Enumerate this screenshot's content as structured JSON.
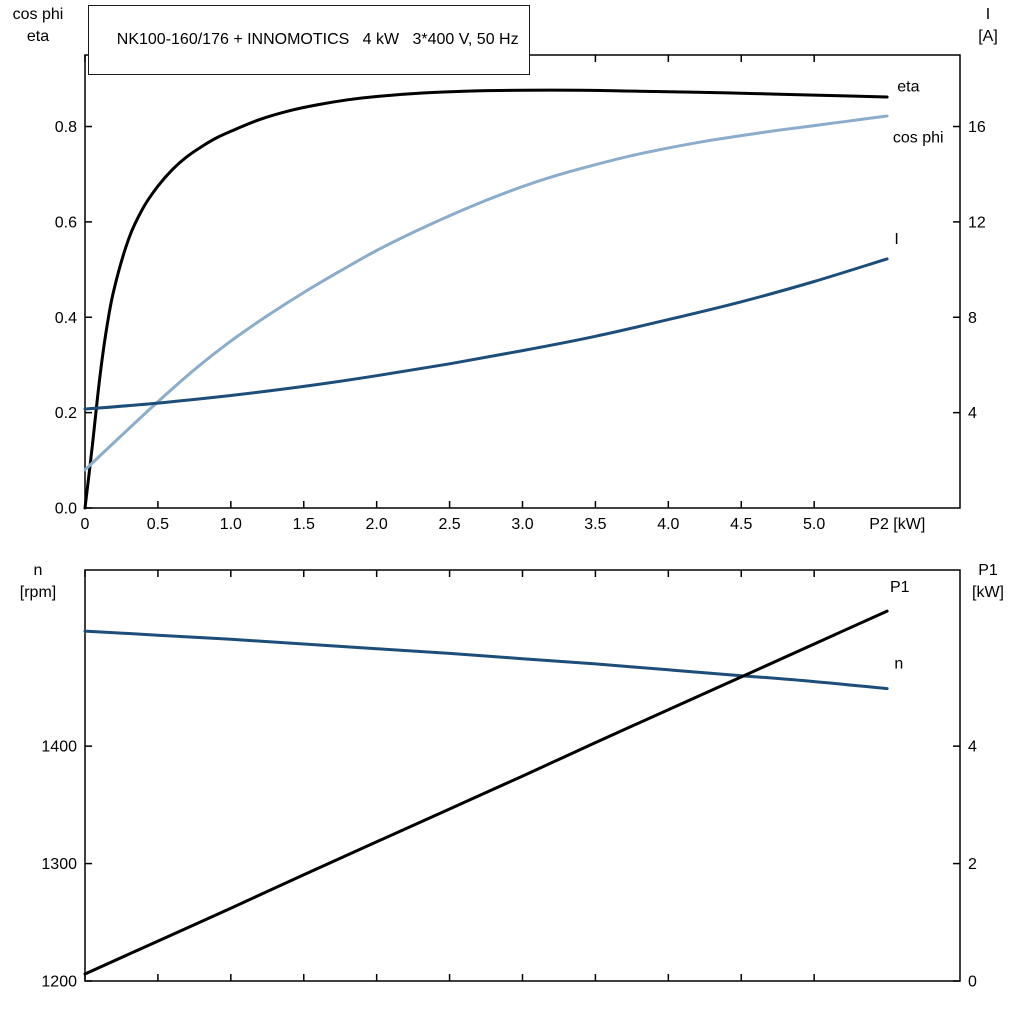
{
  "title": "NK100-160/176 + INNOMOTICS   4 kW   3*400 V, 50 Hz",
  "colors": {
    "black": "#000000",
    "dark_blue": "#1d4e79",
    "light_blue": "#8caccb",
    "n_label_blue": "#2e74b5",
    "axis": "#000000",
    "background": "#ffffff"
  },
  "corner_labels": {
    "top_left_line1": "cos phi",
    "top_left_line2": "eta",
    "top_right_line1": "I",
    "top_right_line2": "[A]",
    "bottom_left_line1": "n",
    "bottom_left_line2": "[rpm]",
    "bottom_right_line1": "P1",
    "bottom_right_line2": "[kW]"
  },
  "chart_data": [
    {
      "type": "line",
      "title": "NK100-160/176 + INNOMOTICS   4 kW   3*400 V, 50 Hz",
      "axes": {
        "x": {
          "label": "P2 [kW]",
          "label_x": 5.57,
          "range": [
            0,
            6
          ],
          "ticks": [
            0,
            0.5,
            1,
            1.5,
            2,
            2.5,
            3,
            3.5,
            4,
            4.5,
            5
          ],
          "tick_labels": [
            "0",
            "0.5",
            "1.0",
            "1.5",
            "2.0",
            "2.5",
            "3.0",
            "3.5",
            "4.0",
            "4.5",
            "5.0"
          ],
          "show_tick_labels": true
        },
        "left": {
          "label": "cos phi / eta",
          "range": [
            0,
            0.95
          ],
          "ticks": [
            0,
            0.2,
            0.4,
            0.6,
            0.8
          ],
          "tick_labels": [
            "0.0",
            "0.2",
            "0.4",
            "0.6",
            "0.8"
          ]
        },
        "right": {
          "label": "I [A]",
          "range": [
            0,
            19
          ],
          "ticks": [
            4,
            8,
            12,
            16
          ],
          "tick_labels": [
            "4",
            "8",
            "12",
            "16"
          ]
        }
      },
      "series": [
        {
          "id": "eta",
          "label": "eta",
          "axis": "left",
          "color": "black",
          "points": [
            [
              0,
              0
            ],
            [
              0.05,
              0.13
            ],
            [
              0.1,
              0.27
            ],
            [
              0.15,
              0.38
            ],
            [
              0.2,
              0.46
            ],
            [
              0.3,
              0.565
            ],
            [
              0.4,
              0.63
            ],
            [
              0.5,
              0.675
            ],
            [
              0.6,
              0.71
            ],
            [
              0.7,
              0.737
            ],
            [
              0.8,
              0.758
            ],
            [
              0.9,
              0.776
            ],
            [
              1.0,
              0.79
            ],
            [
              1.2,
              0.815
            ],
            [
              1.4,
              0.833
            ],
            [
              1.6,
              0.846
            ],
            [
              1.8,
              0.856
            ],
            [
              2.0,
              0.863
            ],
            [
              2.3,
              0.87
            ],
            [
              2.6,
              0.874
            ],
            [
              3.0,
              0.876
            ],
            [
              3.4,
              0.876
            ],
            [
              3.8,
              0.874
            ],
            [
              4.2,
              0.872
            ],
            [
              4.6,
              0.869
            ],
            [
              5.0,
              0.866
            ],
            [
              5.5,
              0.862
            ]
          ]
        },
        {
          "id": "cos_phi",
          "label": "cos phi",
          "axis": "left",
          "color": "light_blue",
          "points": [
            [
              0,
              0.08
            ],
            [
              0.25,
              0.152
            ],
            [
              0.5,
              0.223
            ],
            [
              0.75,
              0.29
            ],
            [
              1.0,
              0.35
            ],
            [
              1.25,
              0.403
            ],
            [
              1.5,
              0.452
            ],
            [
              1.75,
              0.497
            ],
            [
              2.0,
              0.54
            ],
            [
              2.25,
              0.578
            ],
            [
              2.5,
              0.613
            ],
            [
              2.75,
              0.645
            ],
            [
              3.0,
              0.674
            ],
            [
              3.25,
              0.699
            ],
            [
              3.5,
              0.72
            ],
            [
              3.75,
              0.739
            ],
            [
              4.0,
              0.755
            ],
            [
              4.25,
              0.769
            ],
            [
              4.5,
              0.781
            ],
            [
              4.75,
              0.792
            ],
            [
              5.0,
              0.802
            ],
            [
              5.25,
              0.812
            ],
            [
              5.5,
              0.822
            ]
          ]
        },
        {
          "id": "current",
          "label": "I",
          "axis": "right",
          "color": "dark_blue",
          "points": [
            [
              0,
              4.15
            ],
            [
              0.5,
              4.4
            ],
            [
              1.0,
              4.72
            ],
            [
              1.5,
              5.1
            ],
            [
              2.0,
              5.55
            ],
            [
              2.5,
              6.05
            ],
            [
              3.0,
              6.6
            ],
            [
              3.5,
              7.2
            ],
            [
              4.0,
              7.9
            ],
            [
              4.5,
              8.65
            ],
            [
              5.0,
              9.5
            ],
            [
              5.5,
              10.45
            ]
          ]
        }
      ],
      "annotations": [
        {
          "text": "eta",
          "axis": "left",
          "x": 5.57,
          "y": 0.885,
          "color": "black"
        },
        {
          "text": "cos phi",
          "axis": "left",
          "x": 5.54,
          "y": 0.778,
          "color": "light_blue"
        },
        {
          "text": "I",
          "axis": "right",
          "x": 5.55,
          "y": 11.3,
          "color": "dark_blue"
        }
      ]
    },
    {
      "type": "line",
      "title": "",
      "axes": {
        "x": {
          "label": "",
          "label_x": null,
          "range": [
            0,
            6
          ],
          "ticks": [
            0,
            0.5,
            1,
            1.5,
            2,
            2.5,
            3,
            3.5,
            4,
            4.5,
            5
          ],
          "tick_labels": [],
          "show_tick_labels": false
        },
        "left": {
          "label": "n [rpm]",
          "range": [
            1200,
            1550
          ],
          "ticks": [
            1200,
            1300,
            1400
          ],
          "tick_labels": [
            "1200",
            "1300",
            "1400"
          ]
        },
        "right": {
          "label": "P1 [kW]",
          "range": [
            0,
            7
          ],
          "ticks": [
            0,
            2,
            4
          ],
          "tick_labels": [
            "0",
            "2",
            "4"
          ]
        }
      },
      "series": [
        {
          "id": "speed",
          "label": "n",
          "axis": "left",
          "color": "dark_blue",
          "points": [
            [
              0,
              1498
            ],
            [
              0.5,
              1494.5
            ],
            [
              1.0,
              1491
            ],
            [
              1.5,
              1487
            ],
            [
              2.0,
              1483
            ],
            [
              2.5,
              1479
            ],
            [
              3.0,
              1474.5
            ],
            [
              3.5,
              1470
            ],
            [
              4.0,
              1465
            ],
            [
              4.5,
              1460
            ],
            [
              5.0,
              1455
            ],
            [
              5.5,
              1449
            ]
          ]
        },
        {
          "id": "p1",
          "label": "P1",
          "axis": "right",
          "color": "black",
          "points": [
            [
              0,
              0.12
            ],
            [
              0.5,
              0.68
            ],
            [
              1.0,
              1.24
            ],
            [
              1.5,
              1.81
            ],
            [
              2.0,
              2.37
            ],
            [
              2.5,
              2.93
            ],
            [
              3.0,
              3.49
            ],
            [
              3.5,
              4.06
            ],
            [
              4.0,
              4.62
            ],
            [
              4.5,
              5.18
            ],
            [
              5.0,
              5.74
            ],
            [
              5.5,
              6.3
            ]
          ]
        }
      ],
      "annotations": [
        {
          "text": "P1",
          "axis": "right",
          "x": 5.52,
          "y": 6.72,
          "color": "black"
        },
        {
          "text": "n",
          "axis": "left",
          "x": 5.55,
          "y": 1471,
          "color": "n_label_blue"
        }
      ]
    }
  ]
}
